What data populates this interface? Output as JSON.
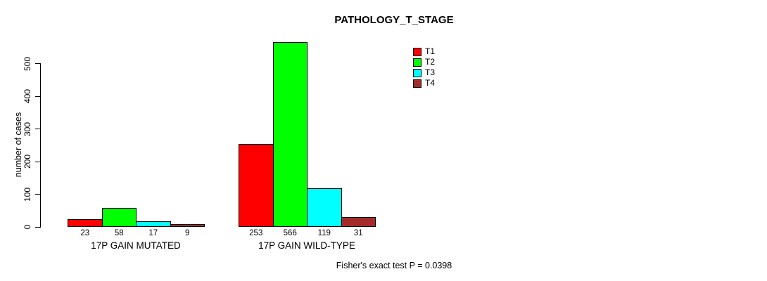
{
  "chart_data": {
    "type": "bar",
    "title": "PATHOLOGY_T_STAGE",
    "ylabel": "number of cases",
    "xlabel": "",
    "yticks": [
      0,
      100,
      200,
      300,
      400,
      500
    ],
    "ylim": [
      0,
      580
    ],
    "grid": false,
    "legend_position": "top-right-inside",
    "categories": [
      "17P GAIN MUTATED",
      "17P GAIN WILD-TYPE"
    ],
    "series": [
      {
        "name": "T1",
        "color": "#ff0000",
        "values": [
          23,
          253
        ]
      },
      {
        "name": "T2",
        "color": "#00ff00",
        "values": [
          58,
          566
        ]
      },
      {
        "name": "T3",
        "color": "#00ffff",
        "values": [
          17,
          119
        ]
      },
      {
        "name": "T4",
        "color": "#a52a2a",
        "values": [
          9,
          31
        ]
      }
    ],
    "bar_value_labels": [
      [
        "23",
        "58",
        "17",
        "9"
      ],
      [
        "253",
        "566",
        "119",
        "31"
      ]
    ],
    "annotation": "Fisher's exact test P = 0.0398"
  }
}
